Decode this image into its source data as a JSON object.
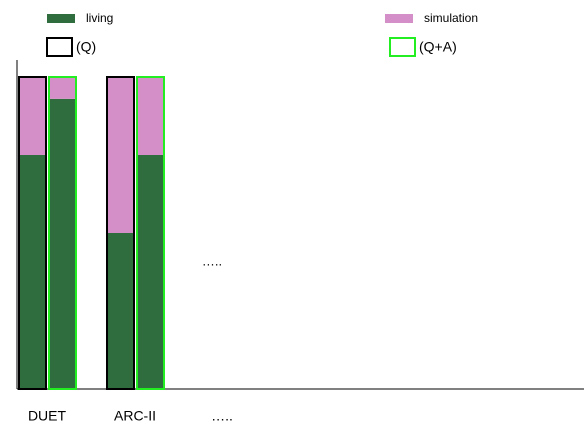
{
  "chart_data": {
    "type": "bar",
    "categories": [
      "DUET",
      "ARC-II",
      "….."
    ],
    "groups": [
      {
        "name": "(Q)",
        "color": "#000000"
      },
      {
        "name": "(Q+A)",
        "color": "#22ee22"
      }
    ],
    "series": [
      {
        "name": "living",
        "color": "#2f6d3e",
        "values": [
          [
            75,
            93
          ],
          [
            50,
            75
          ],
          null
        ]
      },
      {
        "name": "simulation",
        "color": "#d48fc8",
        "values": [
          [
            25,
            7
          ],
          [
            50,
            25
          ],
          null
        ]
      }
    ],
    "annotation": "…..",
    "ylim": [
      0,
      100
    ]
  }
}
